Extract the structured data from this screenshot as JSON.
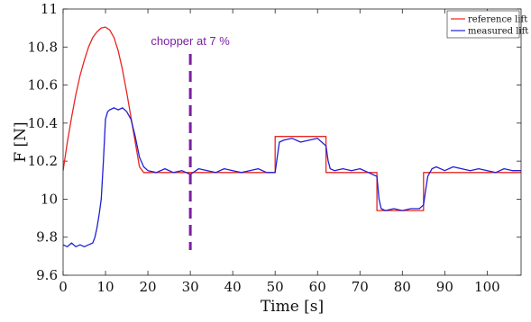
{
  "chart_data": {
    "type": "line",
    "xlabel": "Time [s]",
    "ylabel": "F [N]",
    "xlim": [
      0,
      108
    ],
    "ylim": [
      9.6,
      11
    ],
    "xticks": [
      0,
      10,
      20,
      30,
      40,
      50,
      60,
      70,
      80,
      90,
      100
    ],
    "yticks": [
      9.6,
      9.8,
      10,
      10.2,
      10.4,
      10.6,
      10.8,
      11
    ],
    "ytick_labels": [
      "9.6",
      "9.8",
      "10",
      "10.2",
      "10.4",
      "10.6",
      "10.8",
      "11"
    ],
    "grid": false,
    "legend": "top-right",
    "series": [
      {
        "name": "reference lift",
        "color": "#e8261f",
        "x": [
          0,
          1,
          2,
          3,
          4,
          5,
          6,
          7,
          8,
          9,
          10,
          11,
          12,
          13,
          14,
          15,
          16,
          17,
          18,
          19,
          19,
          50,
          50,
          62,
          62,
          74,
          74,
          85,
          85,
          108
        ],
        "y": [
          10.15,
          10.3,
          10.43,
          10.55,
          10.65,
          10.73,
          10.8,
          10.85,
          10.88,
          10.9,
          10.905,
          10.89,
          10.85,
          10.78,
          10.68,
          10.56,
          10.43,
          10.3,
          10.17,
          10.14,
          10.14,
          10.14,
          10.33,
          10.33,
          10.14,
          10.14,
          9.94,
          9.94,
          10.14,
          10.14
        ]
      },
      {
        "name": "measured lift",
        "color": "#1f1fd6",
        "x": [
          0,
          1,
          2,
          3,
          4,
          5,
          6,
          7,
          7.5,
          8,
          8.5,
          9,
          9.5,
          10,
          10.5,
          11,
          12,
          13,
          14,
          15,
          16,
          17,
          18,
          19,
          20,
          22,
          24,
          26,
          28,
          30,
          32,
          34,
          36,
          38,
          40,
          42,
          44,
          46,
          48,
          50,
          50.5,
          51,
          52,
          54,
          56,
          58,
          60,
          61,
          62,
          62.5,
          63,
          64,
          66,
          68,
          70,
          72,
          74,
          74.5,
          75,
          76,
          78,
          80,
          82,
          84,
          85,
          85.5,
          86,
          87,
          88,
          90,
          92,
          94,
          96,
          98,
          100,
          102,
          104,
          106,
          108
        ],
        "y": [
          9.76,
          9.75,
          9.77,
          9.75,
          9.76,
          9.75,
          9.76,
          9.77,
          9.8,
          9.85,
          9.92,
          10.0,
          10.2,
          10.42,
          10.46,
          10.47,
          10.48,
          10.47,
          10.48,
          10.46,
          10.42,
          10.33,
          10.22,
          10.17,
          10.15,
          10.14,
          10.16,
          10.14,
          10.15,
          10.13,
          10.16,
          10.15,
          10.14,
          10.16,
          10.15,
          10.14,
          10.15,
          10.16,
          10.14,
          10.14,
          10.22,
          10.3,
          10.31,
          10.32,
          10.3,
          10.31,
          10.32,
          10.3,
          10.28,
          10.2,
          10.16,
          10.15,
          10.16,
          10.15,
          10.16,
          10.14,
          10.12,
          10.0,
          9.95,
          9.94,
          9.95,
          9.94,
          9.95,
          9.95,
          9.97,
          10.05,
          10.12,
          10.16,
          10.17,
          10.15,
          10.17,
          10.16,
          10.15,
          10.16,
          10.15,
          10.14,
          10.16,
          10.15,
          10.15
        ]
      }
    ],
    "annotations": [
      {
        "text": "chopper at 7 %",
        "x": 30,
        "color": "#7b1fa2",
        "style": "dashed-vertical-line"
      }
    ]
  }
}
